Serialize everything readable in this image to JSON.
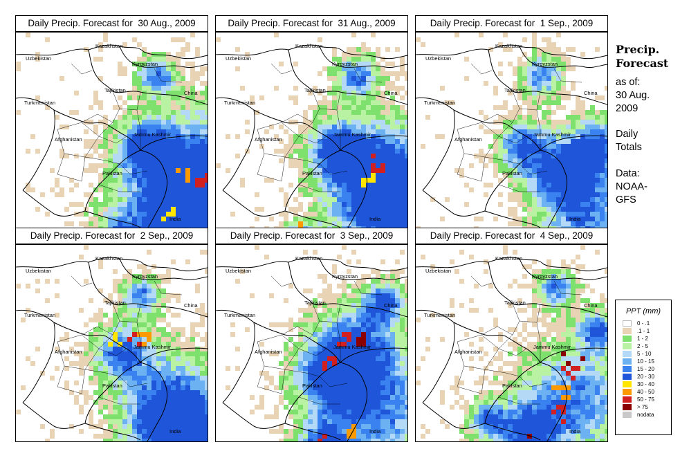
{
  "panels": [
    {
      "title": "Daily Precip. Forecast for  30 Aug., 2009",
      "rain": [
        [
          270,
          200,
          70
        ],
        [
          230,
          250,
          60
        ],
        [
          150,
          300,
          25
        ],
        [
          200,
          60,
          20
        ],
        [
          180,
          160,
          25
        ]
      ],
      "spots": [
        [
          145,
          300,
          "#d21f1f"
        ],
        [
          265,
          212,
          "#d21f1f"
        ],
        [
          240,
          205,
          "#fc9a00"
        ],
        [
          215,
          260,
          "#ffe500"
        ]
      ]
    },
    {
      "title": "Daily Precip. Forecast for  31 Aug., 2009",
      "rain": [
        [
          240,
          200,
          60
        ],
        [
          250,
          255,
          55
        ],
        [
          120,
          300,
          20
        ],
        [
          200,
          60,
          22
        ],
        [
          170,
          165,
          30
        ]
      ],
      "spots": [
        [
          120,
          300,
          "#d21f1f"
        ],
        [
          110,
          290,
          "#fc9a00"
        ],
        [
          230,
          190,
          "#d21f1f"
        ],
        [
          215,
          200,
          "#ffe500"
        ]
      ]
    },
    {
      "title": "Daily Precip. Forecast for  1 Sep., 2009",
      "rain": [
        [
          200,
          195,
          35
        ],
        [
          245,
          260,
          50
        ],
        [
          260,
          160,
          30
        ],
        [
          180,
          60,
          22
        ],
        [
          150,
          160,
          25
        ]
      ],
      "spots": [
        [
          170,
          185,
          "#3a82f0"
        ],
        [
          240,
          270,
          "#1f55d8"
        ]
      ]
    },
    {
      "title": "Daily Precip. Forecast for  2 Sep., 2009",
      "rain": [
        [
          220,
          230,
          55
        ],
        [
          240,
          280,
          50
        ],
        [
          150,
          150,
          30
        ],
        [
          180,
          70,
          20
        ]
      ],
      "spots": [
        [
          168,
          130,
          "#d21f1f"
        ],
        [
          185,
          130,
          "#fc9a00"
        ],
        [
          140,
          135,
          "#ffe500"
        ]
      ]
    },
    {
      "title": "Daily Precip. Forecast for  3 Sep., 2009",
      "rain": [
        [
          230,
          240,
          60
        ],
        [
          200,
          140,
          45
        ],
        [
          160,
          190,
          35
        ],
        [
          240,
          80,
          20
        ],
        [
          150,
          290,
          25
        ]
      ],
      "spots": [
        [
          180,
          135,
          "#d21f1f"
        ],
        [
          205,
          130,
          "#8b0000"
        ],
        [
          160,
          170,
          "#d21f1f"
        ],
        [
          150,
          285,
          "#d21f1f"
        ],
        [
          195,
          265,
          "#fc9a00"
        ]
      ]
    },
    {
      "title": "Daily Precip. Forecast for  4 Sep., 2009",
      "rain": [
        [
          225,
          220,
          60
        ],
        [
          160,
          270,
          30
        ],
        [
          260,
          120,
          20
        ],
        [
          200,
          60,
          20
        ],
        [
          100,
          250,
          20
        ]
      ],
      "spots": [
        [
          225,
          165,
          "#8b0000"
        ],
        [
          210,
          210,
          "#fc9a00"
        ],
        [
          225,
          185,
          "#d21f1f"
        ],
        [
          155,
          280,
          "#8b0000"
        ],
        [
          200,
          240,
          "#d21f1f"
        ]
      ]
    }
  ],
  "map_labels": {
    "kazakhstan": "Kazakhstan",
    "uzbekistan": "Uzbekistan",
    "kyrgyzstan": "Kyrgyzstan",
    "tajikistan": "Tajikistan",
    "china": "China",
    "turkmenistan": "Turkmenistan",
    "afghanistan": "Afghanistan",
    "jammu_kashmir": "Jammu Kashmir",
    "pakistan": "Pakistan",
    "india": "India"
  },
  "sidebar": {
    "heading_line1": "Precip.",
    "heading_line2": "Forecast",
    "as_of_line1": "as of:",
    "as_of_line2": "30 Aug.",
    "as_of_line3": "2009",
    "daily_line1": "Daily",
    "daily_line2": "Totals",
    "data_line1": "Data:",
    "data_line2": "NOAA-",
    "data_line3": "GFS"
  },
  "legend": {
    "title": "PPT (mm)",
    "items": [
      {
        "label": "0 - .1",
        "color": "#ffffff"
      },
      {
        "label": ".1 - 1",
        "color": "#e8d3b4"
      },
      {
        "label": "1 - 2",
        "color": "#7ee16e"
      },
      {
        "label": "2 - 5",
        "color": "#b8f2a2"
      },
      {
        "label": "5 - 10",
        "color": "#b4d9f7"
      },
      {
        "label": "10 - 15",
        "color": "#6cb2f3"
      },
      {
        "label": "15 - 20",
        "color": "#3a82f0"
      },
      {
        "label": "20 - 30",
        "color": "#1f55d8"
      },
      {
        "label": "30 - 40",
        "color": "#ffe500"
      },
      {
        "label": "40 - 50",
        "color": "#fc9a00"
      },
      {
        "label": "50 - 75",
        "color": "#d21f1f"
      },
      {
        "label": "> 75",
        "color": "#8b0000"
      },
      {
        "label": "nodata",
        "color": "#c8c8c8"
      }
    ]
  }
}
